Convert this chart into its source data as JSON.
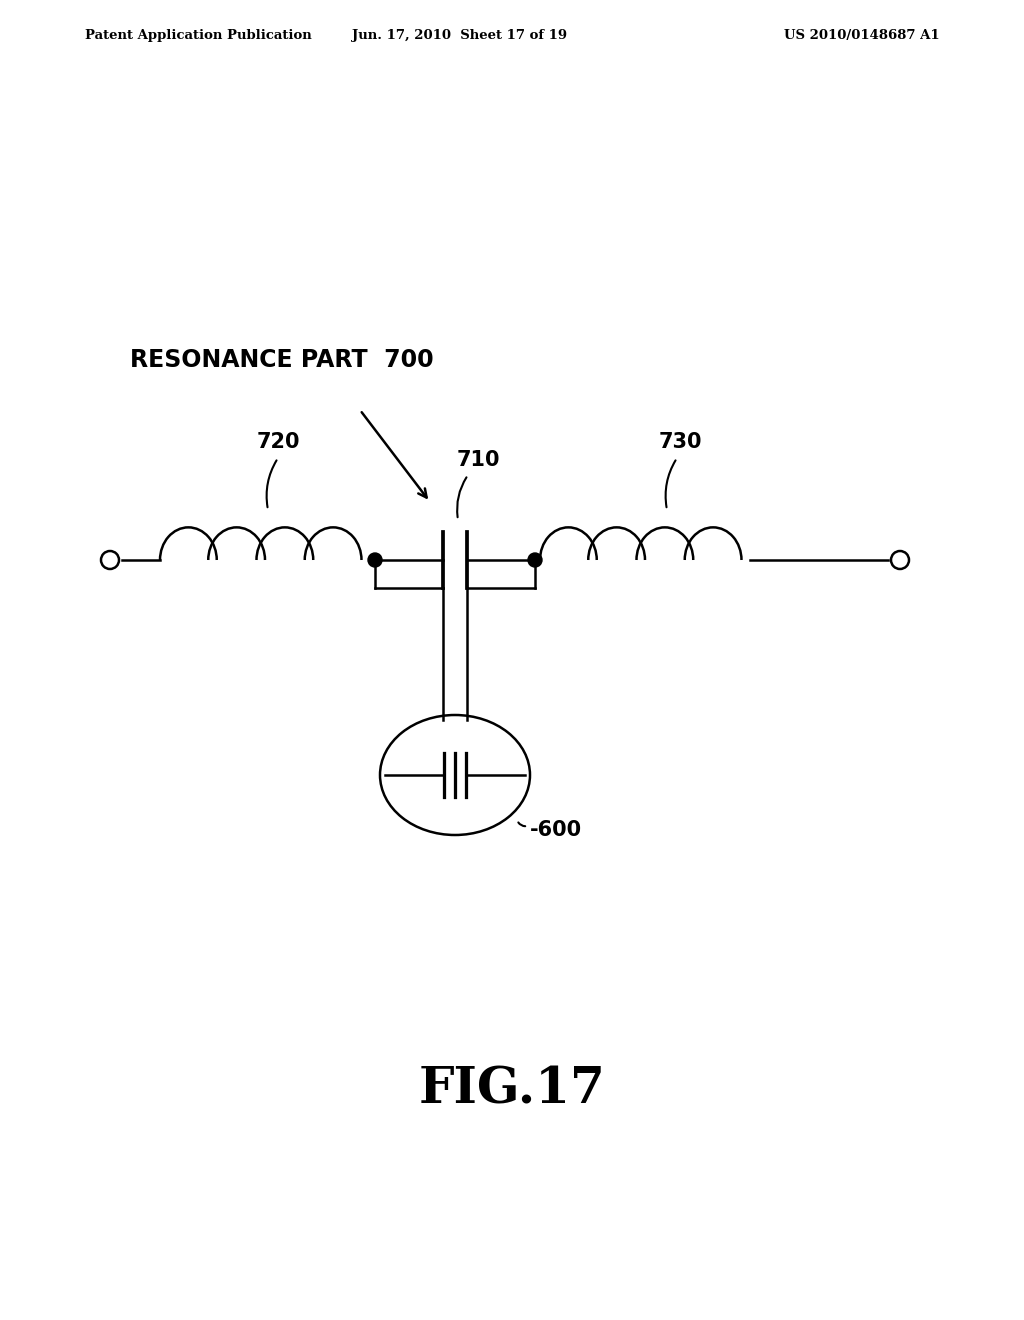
{
  "background_color": "#ffffff",
  "header_left": "Patent Application Publication",
  "header_mid": "Jun. 17, 2010  Sheet 17 of 19",
  "header_right": "US 2010/0148687 A1",
  "fig_label": "FIG.17",
  "label_resonance": "RESONANCE PART  700",
  "label_720": "720",
  "label_710": "710",
  "label_730": "730",
  "label_600": "600",
  "line_color": "#000000"
}
